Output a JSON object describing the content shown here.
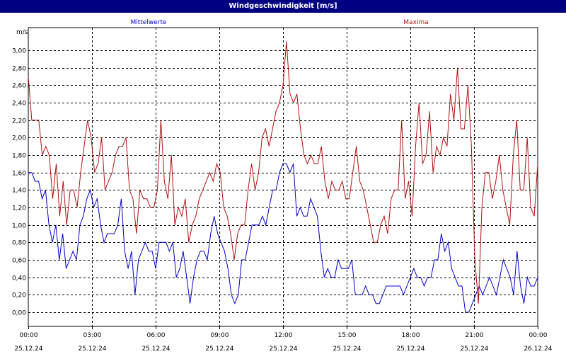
{
  "window": {
    "title": "Windgeschwindigkeit [m/s]"
  },
  "colors": {
    "series_mean": "#0000cc",
    "series_max": "#b01010",
    "titlebar": "#000080",
    "grid": "#000000"
  },
  "chart_data": {
    "type": "line",
    "title": "Windgeschwindigkeit [m/s]",
    "ylabel": "m/s",
    "xlabel": "",
    "ylim": [
      -0.2,
      3.2
    ],
    "yticks": [
      "3,00",
      "2,80",
      "2,60",
      "2,40",
      "2,20",
      "2,00",
      "1,80",
      "1,60",
      "1,40",
      "1,20",
      "1,00",
      "0,80",
      "0,60",
      "0,40",
      "0,20",
      "0,00"
    ],
    "xlim_hours": [
      0,
      24
    ],
    "xticks": [
      {
        "time": "00:00",
        "date": "25.12.24"
      },
      {
        "time": "03:00",
        "date": "25.12.24"
      },
      {
        "time": "06:00",
        "date": "25.12.24"
      },
      {
        "time": "09:00",
        "date": "25.12.24"
      },
      {
        "time": "12:00",
        "date": "25.12.24"
      },
      {
        "time": "15:00",
        "date": "25.12.24"
      },
      {
        "time": "18:00",
        "date": "25.12.24"
      },
      {
        "time": "21:00",
        "date": "25.12.24"
      },
      {
        "time": "00:00",
        "date": "26.12.24"
      }
    ],
    "grid": true,
    "legend_placement": "top",
    "series": [
      {
        "name": "Mittelwerte",
        "color": "#0000cc",
        "values": [
          1.6,
          1.6,
          1.5,
          1.5,
          1.3,
          1.4,
          1.0,
          0.8,
          1.0,
          0.6,
          0.9,
          0.5,
          0.6,
          0.7,
          0.6,
          1.0,
          1.1,
          1.3,
          1.4,
          1.2,
          1.3,
          1.0,
          0.8,
          0.9,
          0.9,
          0.9,
          1.0,
          1.3,
          0.7,
          0.5,
          0.7,
          0.2,
          0.6,
          0.7,
          0.8,
          0.7,
          0.7,
          0.5,
          0.8,
          0.8,
          0.8,
          0.7,
          0.8,
          0.4,
          0.5,
          0.7,
          0.4,
          0.1,
          0.4,
          0.6,
          0.7,
          0.7,
          0.6,
          0.9,
          1.1,
          0.9,
          0.8,
          0.7,
          0.5,
          0.2,
          0.1,
          0.2,
          0.6,
          0.6,
          0.8,
          1.0,
          1.0,
          1.0,
          1.1,
          1.0,
          1.2,
          1.4,
          1.4,
          1.6,
          1.7,
          1.7,
          1.6,
          1.7,
          1.1,
          1.2,
          1.1,
          1.1,
          1.3,
          1.2,
          1.1,
          0.7,
          0.4,
          0.5,
          0.4,
          0.4,
          0.6,
          0.5,
          0.5,
          0.5,
          0.6,
          0.2,
          0.2,
          0.2,
          0.3,
          0.2,
          0.2,
          0.1,
          0.1,
          0.2,
          0.3,
          0.3,
          0.3,
          0.3,
          0.3,
          0.2,
          0.3,
          0.4,
          0.5,
          0.4,
          0.4,
          0.3,
          0.4,
          0.4,
          0.6,
          0.6,
          0.9,
          0.7,
          0.8,
          0.5,
          0.4,
          0.3,
          0.3,
          0.0,
          0.0,
          0.1,
          0.2,
          0.3,
          0.2,
          0.3,
          0.4,
          0.3,
          0.2,
          0.4,
          0.6,
          0.5,
          0.4,
          0.2,
          0.7,
          0.3,
          0.1,
          0.4,
          0.3,
          0.3,
          0.4
        ]
      },
      {
        "name": "Maxima",
        "color": "#b01010",
        "values": [
          2.7,
          2.2,
          2.2,
          2.2,
          1.8,
          1.9,
          1.8,
          1.3,
          1.7,
          1.1,
          1.5,
          1.0,
          1.4,
          1.4,
          1.2,
          1.6,
          1.9,
          2.2,
          2.0,
          1.6,
          1.7,
          2.0,
          1.4,
          1.5,
          1.6,
          1.8,
          1.9,
          1.9,
          2.0,
          1.4,
          1.3,
          0.9,
          1.4,
          1.3,
          1.3,
          1.2,
          1.2,
          1.4,
          2.2,
          1.5,
          1.3,
          1.8,
          1.0,
          1.2,
          1.1,
          1.3,
          0.8,
          1.0,
          1.1,
          1.3,
          1.4,
          1.5,
          1.6,
          1.5,
          1.7,
          1.6,
          1.2,
          1.1,
          0.9,
          0.6,
          0.9,
          1.0,
          1.0,
          1.4,
          1.7,
          1.4,
          1.6,
          2.0,
          2.1,
          1.9,
          2.1,
          2.3,
          2.4,
          2.6,
          3.1,
          2.5,
          2.4,
          2.5,
          2.1,
          1.8,
          1.7,
          1.8,
          1.7,
          1.7,
          1.9,
          1.5,
          1.3,
          1.5,
          1.4,
          1.4,
          1.5,
          1.3,
          1.3,
          1.6,
          1.9,
          1.5,
          1.4,
          1.2,
          1.0,
          0.8,
          0.8,
          1.0,
          1.1,
          0.9,
          1.3,
          1.4,
          1.4,
          2.2,
          1.3,
          1.5,
          1.1,
          1.9,
          2.4,
          1.7,
          1.8,
          2.3,
          1.6,
          1.9,
          1.8,
          2.0,
          1.9,
          2.5,
          2.2,
          2.8,
          2.1,
          2.1,
          2.6,
          1.9,
          0.6,
          0.1,
          1.2,
          1.6,
          1.6,
          1.3,
          1.5,
          1.8,
          1.4,
          1.2,
          1.0,
          1.8,
          2.2,
          1.4,
          1.4,
          2.0,
          1.2,
          1.1,
          1.7
        ]
      }
    ]
  }
}
